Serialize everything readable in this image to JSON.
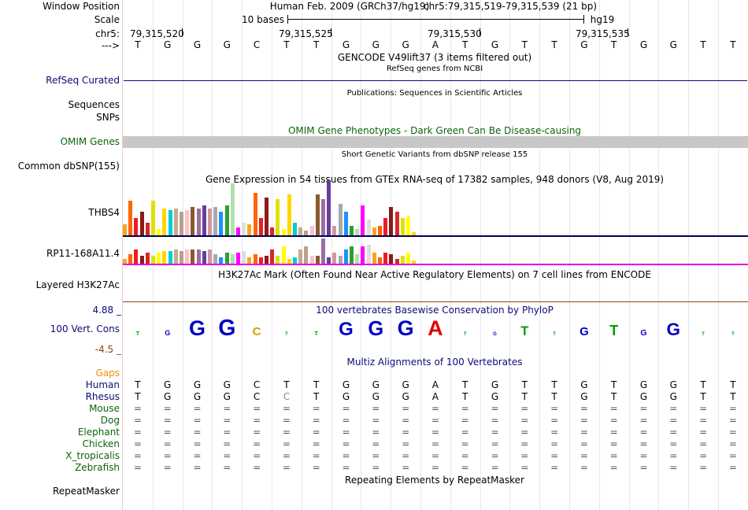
{
  "header": {
    "window_position_label": "Window Position",
    "scale_label": "Scale",
    "chrom_label": "chr5:",
    "strand_label": "--->",
    "assembly": "Human Feb. 2009 (GRCh37/hg19)",
    "position": "chr5:79,315,519-79,315,539 (21 bp)",
    "scale_text": "10 bases",
    "db": "hg19",
    "coords": [
      "79,315,520",
      "79,315,525",
      "79,315,530",
      "79,315,535"
    ]
  },
  "sequence": [
    "T",
    "G",
    "G",
    "G",
    "C",
    "T",
    "T",
    "G",
    "G",
    "G",
    "A",
    "T",
    "G",
    "T",
    "T",
    "G",
    "T",
    "G",
    "G",
    "T",
    "T"
  ],
  "tracks": {
    "gencode_title": "GENCODE V49lift37 (3 items filtered out)",
    "refseq_subtitle": "RefSeq genes from NCBI",
    "refseq_label": "RefSeq Curated",
    "pubs_title": "Publications: Sequences in Scientific Articles",
    "sequences_label": "Sequences",
    "snps_label": "SNPs",
    "omim_title": "OMIM Gene Phenotypes - Dark Green Can Be Disease-causing",
    "omim_label": "OMIM Genes",
    "dbsnp_title": "Short Genetic Variants from dbSNP release 155",
    "dbsnp_label": "Common dbSNP(155)",
    "gtex_title": "Gene Expression in 54 tissues from GTEx RNA-seq of 17382 samples, 948 donors (V8, Aug 2019)",
    "gtex_gene1": "THBS4",
    "gtex_gene2": "RP11-168A11.4",
    "h3k27_title": "H3K27Ac Mark (Often Found Near Active Regulatory Elements) on 7 cell lines from ENCODE",
    "h3k27_label": "Layered H3K27Ac",
    "cons_title": "100 vertebrates Basewise Conservation by PhyloP",
    "cons_label": "100 Vert. Cons",
    "cons_max": "4.88 _",
    "cons_min": "-4.5 _",
    "gaps_label": "Gaps",
    "multiz_title": "Multiz Alignments of 100 Vertebrates",
    "repeat_title": "Repeating Elements by RepeatMasker",
    "repeat_label": "RepeatMasker"
  },
  "species": [
    {
      "name": "Human",
      "row": [
        "T",
        "G",
        "G",
        "G",
        "C",
        "T",
        "T",
        "G",
        "G",
        "G",
        "A",
        "T",
        "G",
        "T",
        "T",
        "G",
        "T",
        "G",
        "G",
        "T",
        "T"
      ]
    },
    {
      "name": "Rhesus",
      "row": [
        "T",
        "G",
        "G",
        "G",
        "C",
        "C",
        "T",
        "G",
        "G",
        "G",
        "A",
        "T",
        "G",
        "T",
        "T",
        "G",
        "T",
        "G",
        "G",
        "T",
        "T"
      ]
    },
    {
      "name": "Mouse",
      "row": [
        "=",
        "=",
        "=",
        "=",
        "=",
        "=",
        "=",
        "=",
        "=",
        "=",
        "=",
        "=",
        "=",
        "=",
        "=",
        "=",
        "=",
        "=",
        "=",
        "=",
        "="
      ]
    },
    {
      "name": "Dog",
      "row": [
        "=",
        "=",
        "=",
        "=",
        "=",
        "=",
        "=",
        "=",
        "=",
        "=",
        "=",
        "=",
        "=",
        "=",
        "=",
        "=",
        "=",
        "=",
        "=",
        "=",
        "="
      ]
    },
    {
      "name": "Elephant",
      "row": [
        "=",
        "=",
        "=",
        "=",
        "=",
        "=",
        "=",
        "=",
        "=",
        "=",
        "=",
        "=",
        "=",
        "=",
        "=",
        "=",
        "=",
        "=",
        "=",
        "=",
        "="
      ]
    },
    {
      "name": "Chicken",
      "row": [
        "=",
        "=",
        "=",
        "=",
        "=",
        "=",
        "=",
        "=",
        "=",
        "=",
        "=",
        "=",
        "=",
        "=",
        "=",
        "=",
        "=",
        "=",
        "=",
        "=",
        "="
      ]
    },
    {
      "name": "X_tropicalis",
      "row": [
        "=",
        "=",
        "=",
        "=",
        "=",
        "=",
        "=",
        "=",
        "=",
        "=",
        "=",
        "=",
        "=",
        "=",
        "=",
        "=",
        "=",
        "=",
        "=",
        "=",
        "="
      ]
    },
    {
      "name": "Zebrafish",
      "row": [
        "=",
        "=",
        "=",
        "=",
        "=",
        "=",
        "=",
        "=",
        "=",
        "=",
        "=",
        "=",
        "=",
        "=",
        "=",
        "=",
        "=",
        "=",
        "=",
        "=",
        "="
      ]
    }
  ],
  "colors": {
    "navy": "#0c0c78",
    "green": "#0c640c",
    "orange": "#e69500",
    "omim_bar": "#c8c8c8",
    "gtex_line1": "#00005a",
    "gtex_line2": "#e600e6"
  }
}
